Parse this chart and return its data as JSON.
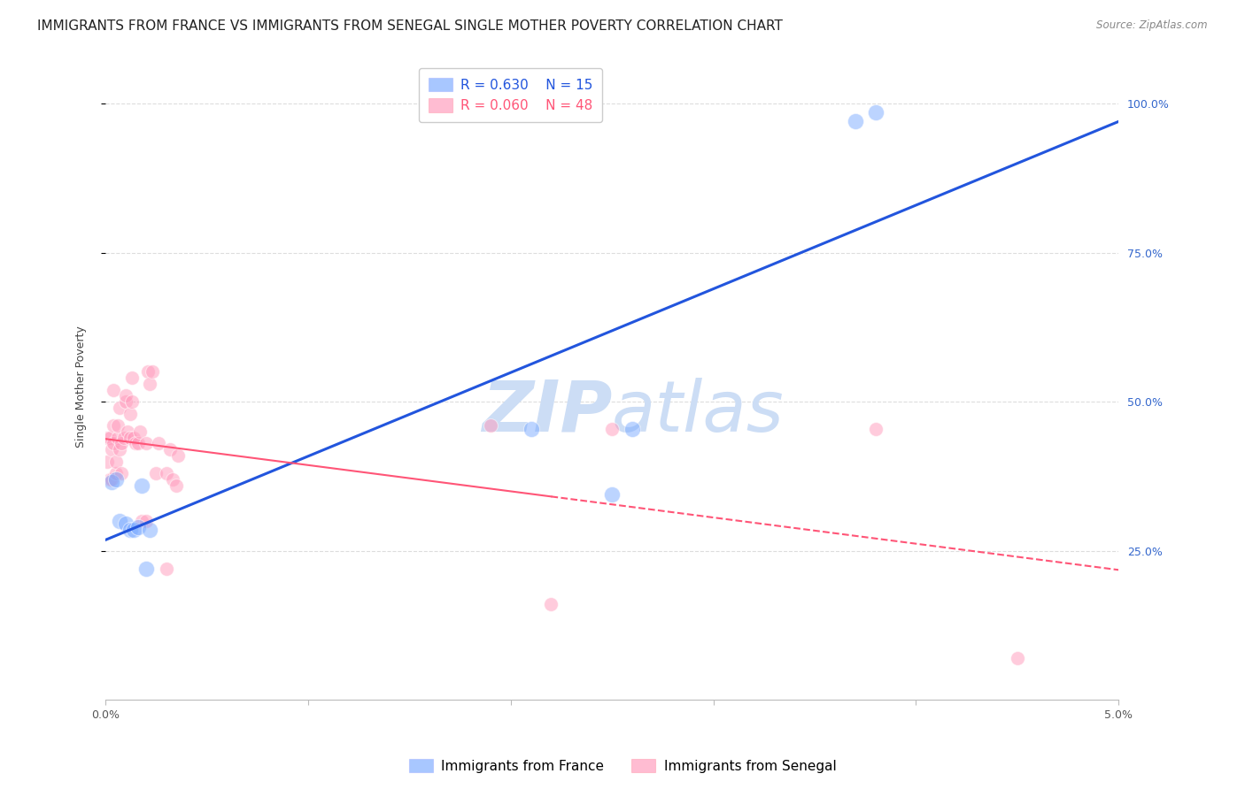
{
  "title": "IMMIGRANTS FROM FRANCE VS IMMIGRANTS FROM SENEGAL SINGLE MOTHER POVERTY CORRELATION CHART",
  "source": "Source: ZipAtlas.com",
  "ylabel": "Single Mother Poverty",
  "france_R": 0.63,
  "france_N": 15,
  "senegal_R": 0.06,
  "senegal_N": 48,
  "france_color": "#7aaaff",
  "senegal_color": "#ff99bb",
  "trendline_france_color": "#2255dd",
  "trendline_senegal_color": "#ff5577",
  "watermark_color": "#ccddf5",
  "france_x": [
    0.0003,
    0.0005,
    0.0007,
    0.001,
    0.0012,
    0.0014,
    0.0016,
    0.0018,
    0.002,
    0.0022,
    0.021,
    0.025,
    0.026,
    0.037,
    0.038
  ],
  "france_y": [
    0.365,
    0.37,
    0.3,
    0.295,
    0.285,
    0.285,
    0.29,
    0.36,
    0.22,
    0.285,
    0.455,
    0.345,
    0.455,
    0.97,
    0.985
  ],
  "senegal_x": [
    0.0001,
    0.0001,
    0.0002,
    0.0002,
    0.0003,
    0.0003,
    0.0004,
    0.0004,
    0.0004,
    0.0005,
    0.0005,
    0.0006,
    0.0006,
    0.0007,
    0.0007,
    0.0008,
    0.0008,
    0.0009,
    0.001,
    0.001,
    0.0011,
    0.0012,
    0.0012,
    0.0013,
    0.0013,
    0.0014,
    0.0015,
    0.0016,
    0.0017,
    0.0018,
    0.002,
    0.002,
    0.0021,
    0.0022,
    0.0023,
    0.0025,
    0.0026,
    0.003,
    0.003,
    0.0032,
    0.0033,
    0.0035,
    0.0036,
    0.019,
    0.022,
    0.025,
    0.038,
    0.045
  ],
  "senegal_y": [
    0.4,
    0.44,
    0.37,
    0.44,
    0.37,
    0.42,
    0.43,
    0.46,
    0.52,
    0.38,
    0.4,
    0.44,
    0.46,
    0.42,
    0.49,
    0.38,
    0.43,
    0.44,
    0.5,
    0.51,
    0.45,
    0.44,
    0.48,
    0.5,
    0.54,
    0.44,
    0.43,
    0.43,
    0.45,
    0.3,
    0.3,
    0.43,
    0.55,
    0.53,
    0.55,
    0.38,
    0.43,
    0.22,
    0.38,
    0.42,
    0.37,
    0.36,
    0.41,
    0.46,
    0.16,
    0.455,
    0.455,
    0.07
  ],
  "background_color": "#ffffff",
  "grid_color": "#dddddd",
  "title_fontsize": 11,
  "axis_fontsize": 9,
  "legend_fontsize": 11,
  "x_min": 0.0,
  "x_max": 0.05,
  "y_min": 0.0,
  "y_max": 1.05
}
